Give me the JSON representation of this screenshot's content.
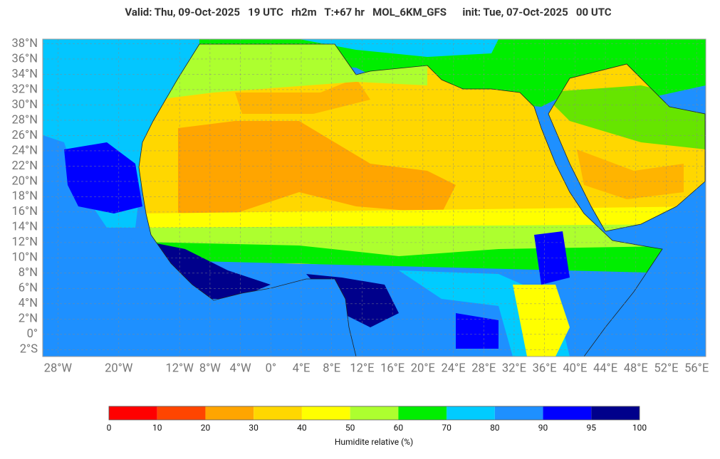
{
  "title": "Valid: Thu, 09-Oct-2025   19 UTC   rh2m   T:+67 hr   MOL_6KM_GFS      init: Tue, 07-Oct-2025   00 UTC",
  "map": {
    "xlim": [
      -30,
      57.2
    ],
    "ylim": [
      -2.9,
      38.6
    ],
    "yticks": [
      {
        "value": 38,
        "label": "38°N"
      },
      {
        "value": 36,
        "label": "36°N"
      },
      {
        "value": 34,
        "label": "34°N"
      },
      {
        "value": 32,
        "label": "32°N"
      },
      {
        "value": 30,
        "label": "30°N"
      },
      {
        "value": 28,
        "label": "28°N"
      },
      {
        "value": 26,
        "label": "26°N"
      },
      {
        "value": 24,
        "label": "24°N"
      },
      {
        "value": 22,
        "label": "22°N"
      },
      {
        "value": 20,
        "label": "20°N"
      },
      {
        "value": 18,
        "label": "18°N"
      },
      {
        "value": 16,
        "label": "16°N"
      },
      {
        "value": 14,
        "label": "14°N"
      },
      {
        "value": 12,
        "label": "12°N"
      },
      {
        "value": 10,
        "label": "10°N"
      },
      {
        "value": 8,
        "label": "8°N"
      },
      {
        "value": 6,
        "label": "6°N"
      },
      {
        "value": 4,
        "label": "4°N"
      },
      {
        "value": 2,
        "label": "2°N"
      },
      {
        "value": 0,
        "label": "0°"
      },
      {
        "value": -2,
        "label": "2°S"
      }
    ],
    "xticks": [
      {
        "value": -28,
        "label": "28°W"
      },
      {
        "value": -20,
        "label": "20°W"
      },
      {
        "value": -12,
        "label": "12°W"
      },
      {
        "value": -8,
        "label": "8°W"
      },
      {
        "value": -4,
        "label": "4°W"
      },
      {
        "value": 0,
        "label": "0°"
      },
      {
        "value": 4,
        "label": "4°E"
      },
      {
        "value": 8,
        "label": "8°E"
      },
      {
        "value": 12,
        "label": "12°E"
      },
      {
        "value": 16,
        "label": "16°E"
      },
      {
        "value": 20,
        "label": "20°E"
      },
      {
        "value": 24,
        "label": "24°E"
      },
      {
        "value": 28,
        "label": "28°E"
      },
      {
        "value": 32,
        "label": "32°E"
      },
      {
        "value": 36,
        "label": "36°E"
      },
      {
        "value": 40,
        "label": "40°E"
      },
      {
        "value": 44,
        "label": "44°E"
      },
      {
        "value": 48,
        "label": "48°E"
      },
      {
        "value": 52,
        "label": "52°E"
      },
      {
        "value": 56,
        "label": "56°E"
      }
    ],
    "grid": true
  },
  "colorbar": {
    "ticks": [
      0,
      10,
      20,
      30,
      40,
      50,
      60,
      70,
      80,
      90,
      95,
      100
    ],
    "colors": [
      "#ff0000",
      "#ff4500",
      "#ffa500",
      "#ffd700",
      "#ffff00",
      "#adff2f",
      "#00ee00",
      "#00ccff",
      "#1e90ff",
      "#0000ff",
      "#00008b"
    ],
    "label": "Humidite relative (%)"
  }
}
